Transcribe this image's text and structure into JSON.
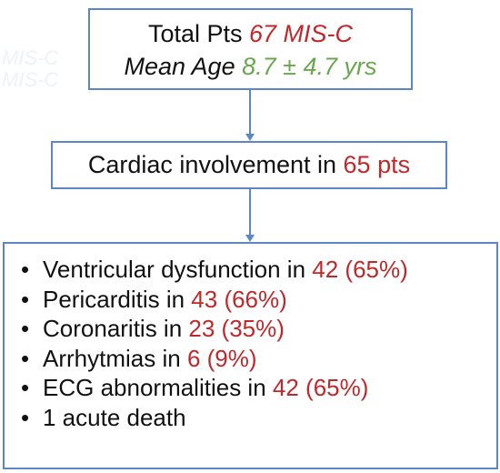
{
  "top_box": {
    "total_label": "Total Pts",
    "total_value": "67 MIS-C",
    "age_label": "Mean Age",
    "age_value": "8.7 ± 4.7 yrs"
  },
  "middle_box": {
    "label": "Cardiac involvement in",
    "value": "65 pts"
  },
  "outcomes": [
    {
      "label": "Ventricular dysfunction in",
      "value": "42 (65%)"
    },
    {
      "label": "Pericarditis in",
      "value": "43 (66%)"
    },
    {
      "label": "Coronaritis in",
      "value": "23 (35%)"
    },
    {
      "label": "Arrhytmias in",
      "value": "6 (9%)"
    },
    {
      "label": "ECG abnormalities in",
      "value": "42 (65%)"
    },
    {
      "label": "1 acute death",
      "value": ""
    }
  ],
  "bullet_glyph": "•",
  "colors": {
    "border": "#5b87c5",
    "value_red": "#c0282b",
    "value_green": "#6aa84f"
  }
}
